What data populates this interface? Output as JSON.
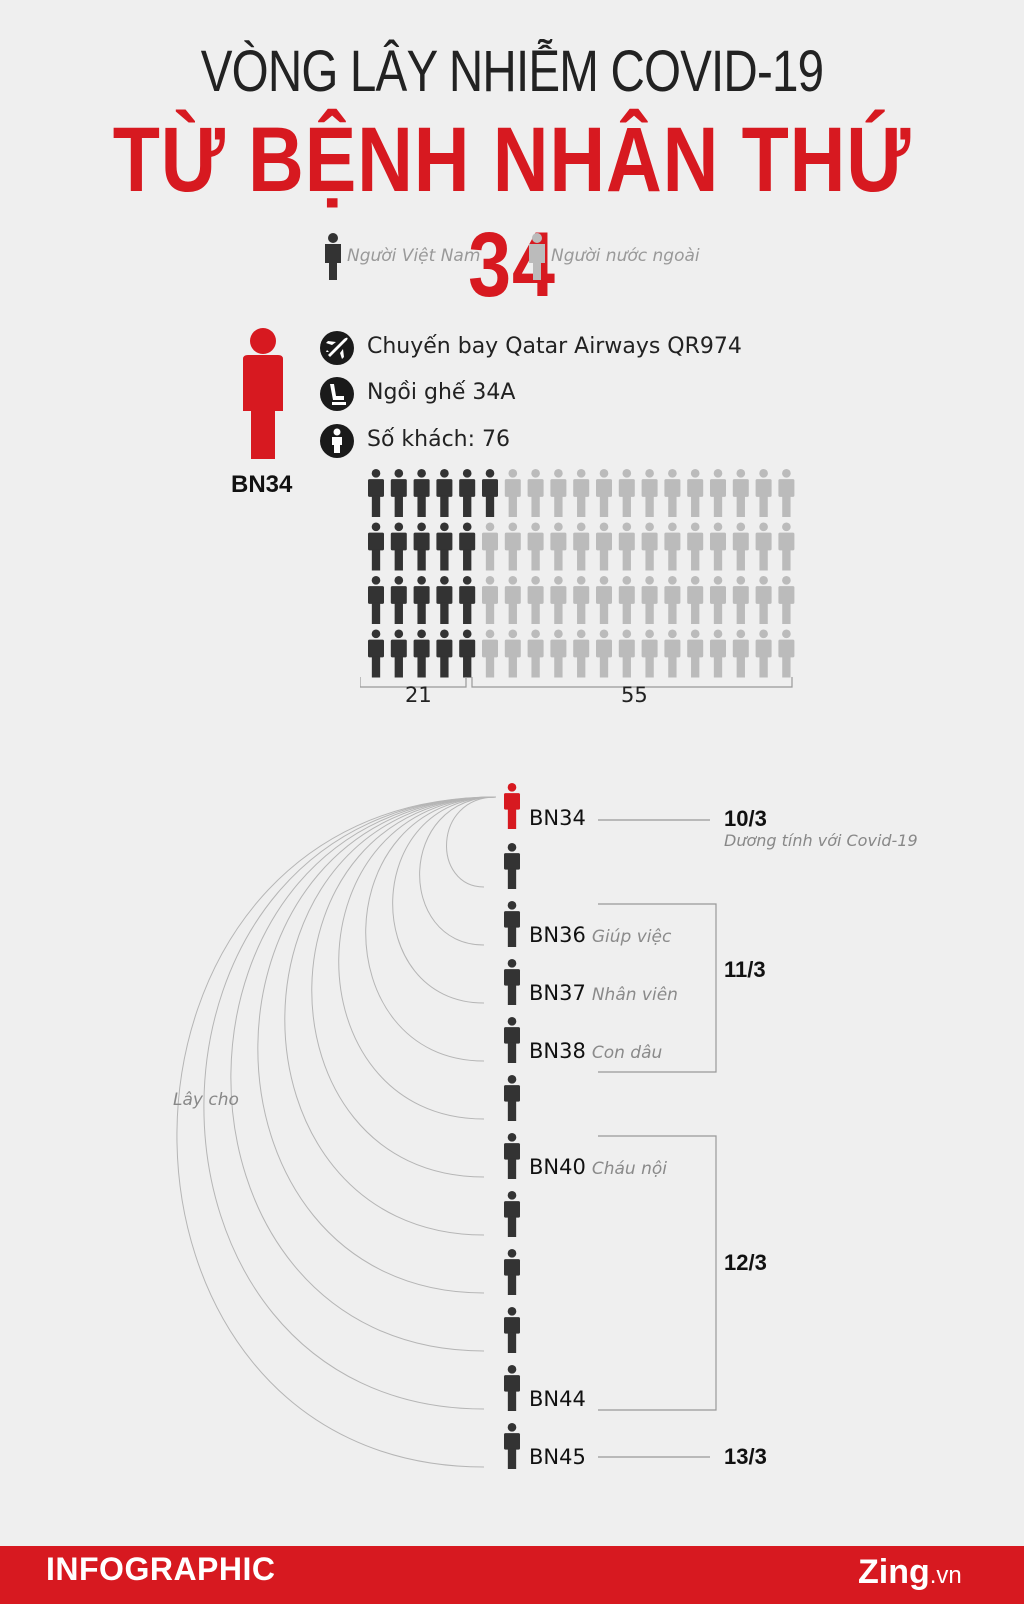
{
  "header": {
    "line1": "VÒNG LÂY NHIỄM COVID-19",
    "line2": "TỪ BỆNH NHÂN THỨ 34"
  },
  "legend": {
    "vietnamese": "Người Việt Nam",
    "foreign": "Người nước ngoài"
  },
  "colors": {
    "accent": "#d71920",
    "vietnamese": "#333333",
    "foreign": "#bbbbbb",
    "background": "#efefef"
  },
  "patient_zero": {
    "label": "BN34",
    "flight_icon": "airplane-icon",
    "flight": "Chuyến bay Qatar Airways QR974",
    "seat_icon": "seat-icon",
    "seat": "Ngồi ghế 34A",
    "passenger_icon": "person-icon",
    "passengers": "Số khách: 76"
  },
  "passenger_grid": {
    "rows": 4,
    "cols": 19,
    "vietnamese_count": 21,
    "foreign_count": 55,
    "vietnamese_label": "21",
    "foreign_label": "55"
  },
  "chain": {
    "infected_label": "Lây cho",
    "source": {
      "label": "BN34",
      "date": "10/3",
      "note": "Dương tính với Covid-19"
    },
    "people": [
      {
        "label": "",
        "role": ""
      },
      {
        "label": "BN36",
        "role": "Giúp việc"
      },
      {
        "label": "BN37",
        "role": "Nhân viên"
      },
      {
        "label": "BN38",
        "role": "Con dâu"
      },
      {
        "label": "",
        "role": ""
      },
      {
        "label": "BN40",
        "role": "Cháu nội"
      },
      {
        "label": "",
        "role": ""
      },
      {
        "label": "",
        "role": ""
      },
      {
        "label": "",
        "role": ""
      },
      {
        "label": "BN44",
        "role": ""
      },
      {
        "label": "BN45",
        "role": ""
      }
    ],
    "groups": [
      {
        "date": "11/3"
      },
      {
        "date": "12/3"
      },
      {
        "date": "13/3"
      }
    ]
  },
  "footer": {
    "left": "INFOGRAPHIC",
    "brand": "Zing",
    "domain": ".vn"
  }
}
